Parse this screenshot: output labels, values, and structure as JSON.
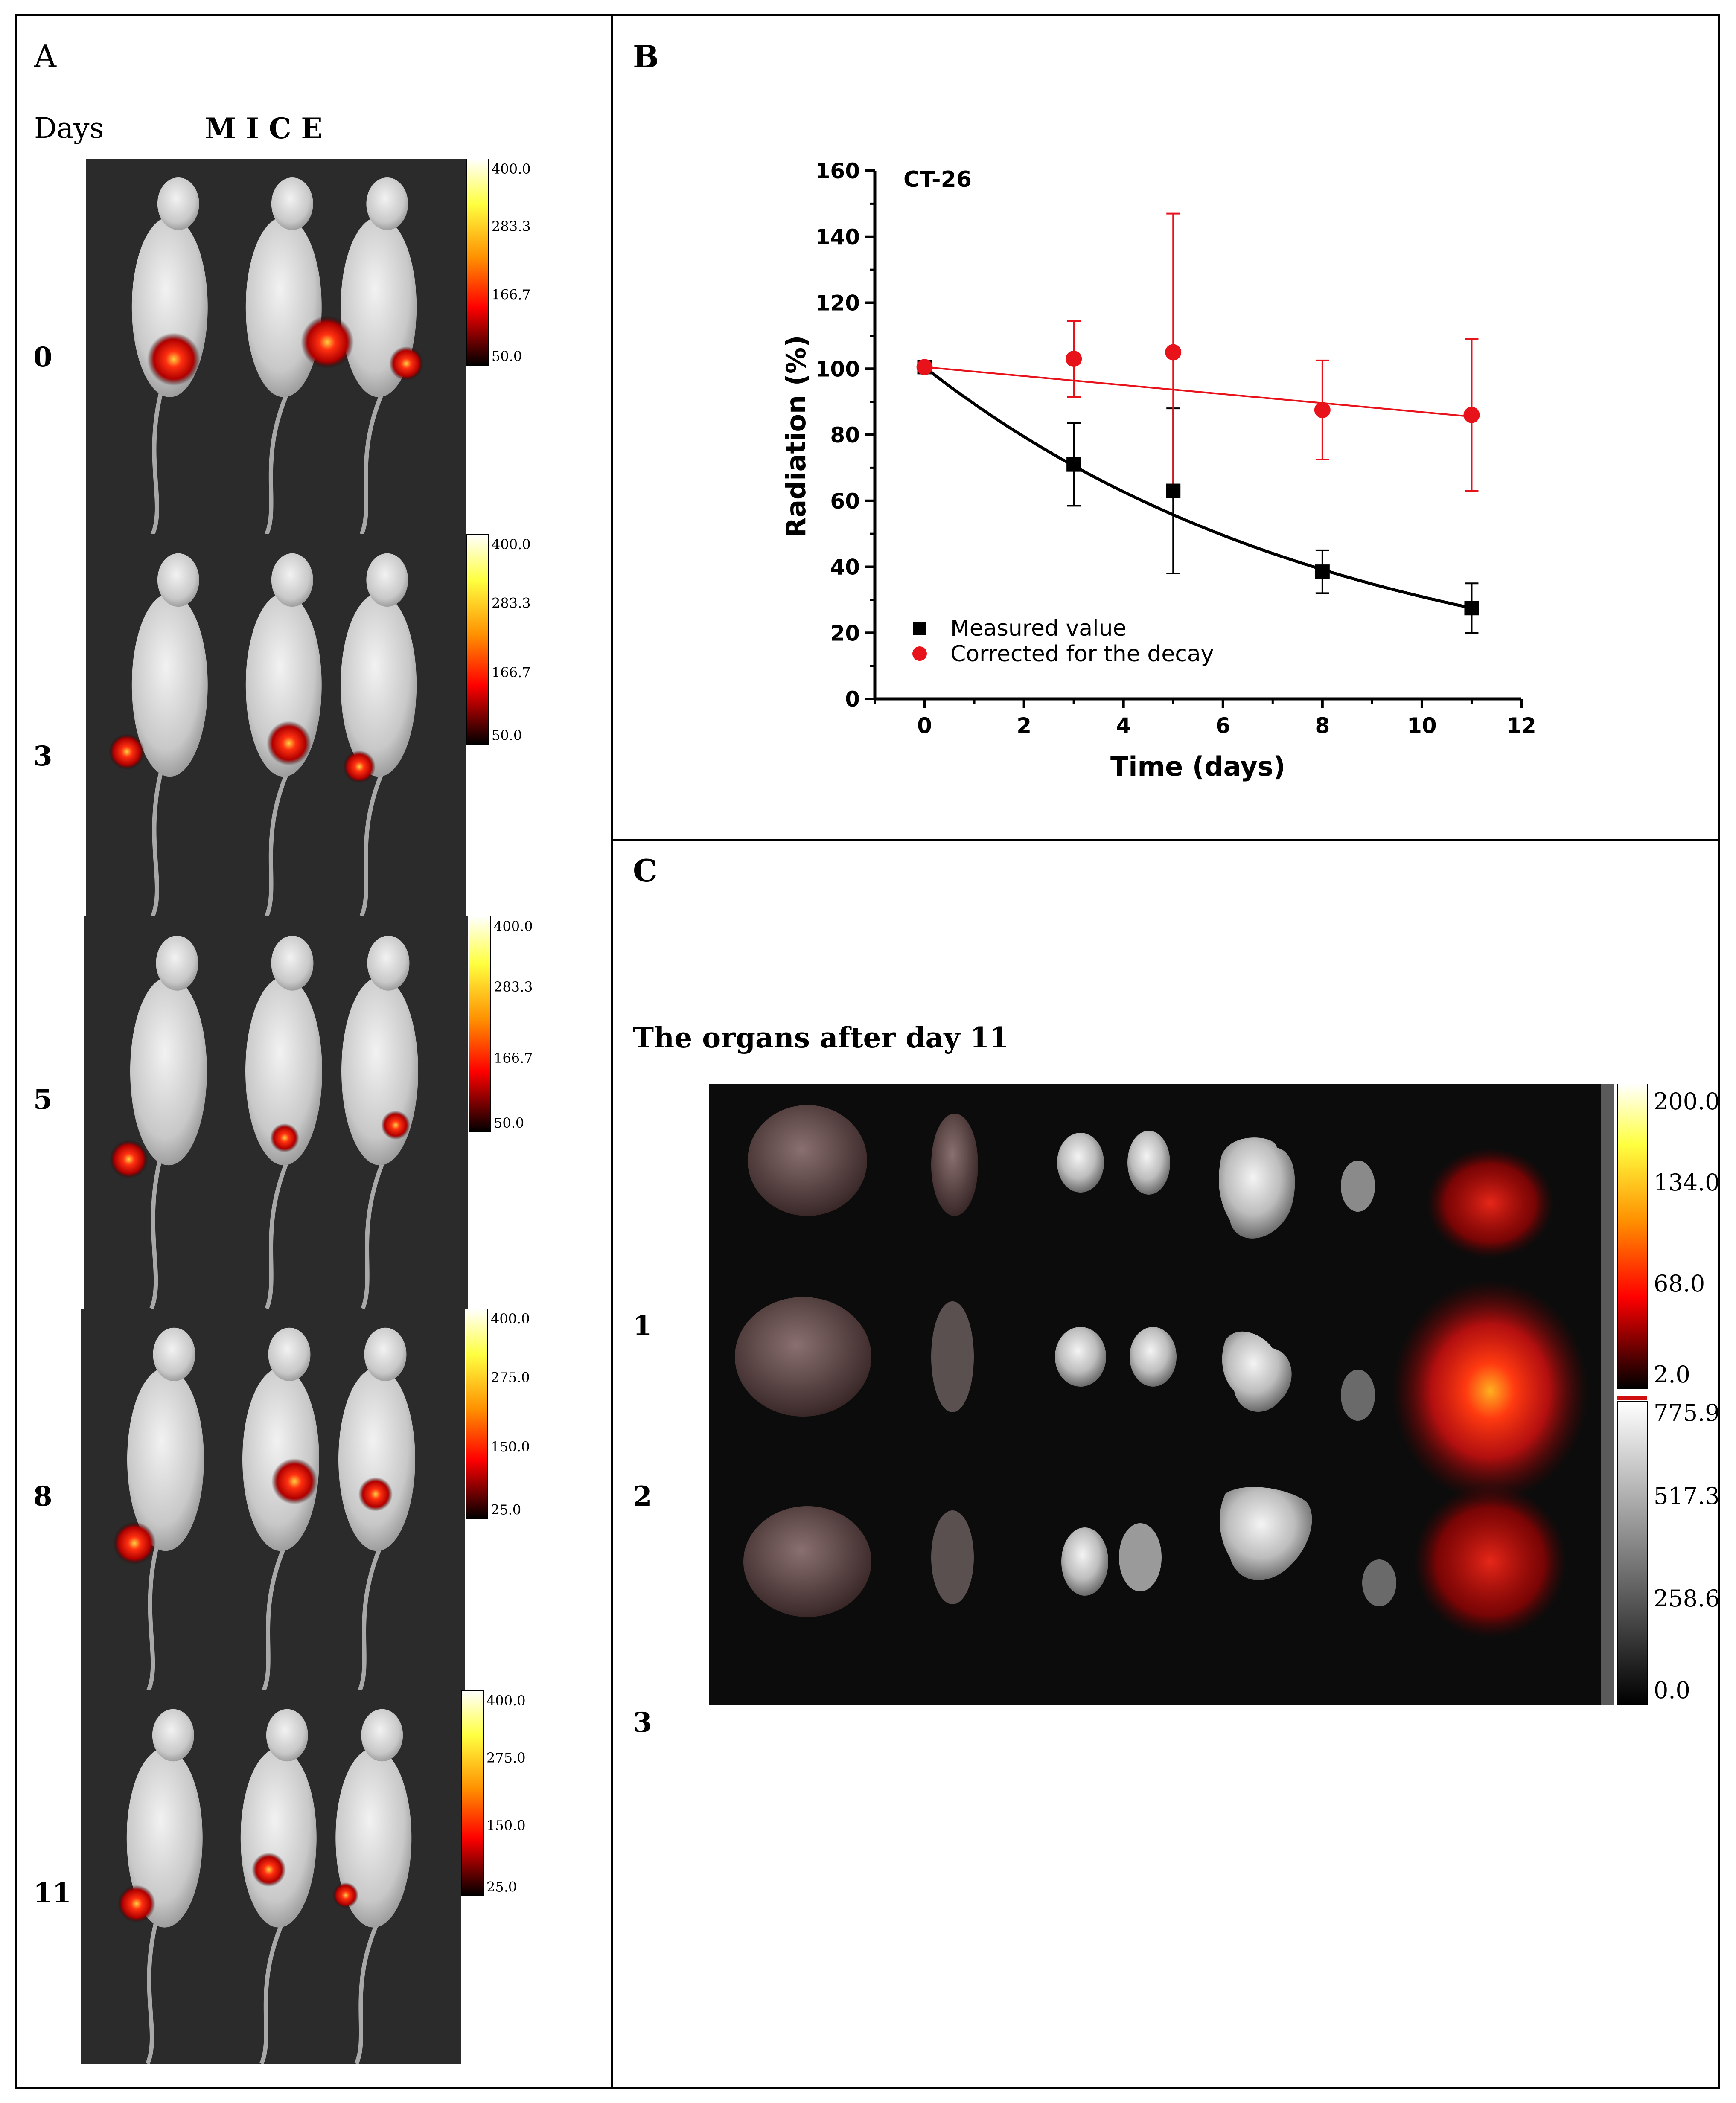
{
  "panels": {
    "a": {
      "letter": "A",
      "days_header": "Days",
      "mice_header": "M I C E",
      "rows": [
        {
          "day": "0",
          "scale": [
            "400.0",
            "283.3",
            "166.7",
            "50.0"
          ]
        },
        {
          "day": "3",
          "scale": [
            "400.0",
            "283.3",
            "166.7",
            "50.0"
          ]
        },
        {
          "day": "5",
          "scale": [
            "400.0",
            "283.3",
            "166.7",
            "50.0"
          ]
        },
        {
          "day": "8",
          "scale": [
            "400.0",
            "275.0",
            "150.0",
            "25.0"
          ]
        },
        {
          "day": "11",
          "scale": [
            "400.0",
            "275.0",
            "150.0",
            "25.0"
          ]
        }
      ]
    },
    "b": {
      "letter": "B"
    },
    "c": {
      "letter": "C",
      "title": "The organs after day 11",
      "rows": [
        "1",
        "2",
        "3"
      ],
      "color_scale": [
        "200.0",
        "134.0",
        "68.0",
        "2.0"
      ],
      "gray_scale": [
        "775.9",
        "517.3",
        "258.6",
        "0.0"
      ]
    }
  },
  "chart_data": {
    "type": "scatter",
    "annotation": "CT-26",
    "xlabel": "Time (days)",
    "ylabel": "Radiation (%)",
    "xlim": [
      -1,
      12
    ],
    "ylim": [
      0,
      160
    ],
    "xticks": [
      0,
      2,
      4,
      6,
      8,
      10,
      12
    ],
    "yticks": [
      0,
      20,
      40,
      60,
      80,
      100,
      120,
      140,
      160
    ],
    "legend_position": "bottom-left",
    "series": [
      {
        "name": "Measured value",
        "color": "#000000",
        "marker": "square",
        "x": [
          0,
          3,
          5,
          8,
          11
        ],
        "y": [
          100.5,
          71,
          63,
          38.5,
          27.5
        ],
        "err": [
          0,
          12.5,
          25,
          6.5,
          7.5
        ],
        "fit": "exponential",
        "fit_x": [
          0,
          11
        ],
        "fit_y": [
          100.5,
          27.5
        ]
      },
      {
        "name": "Corrected for the decay",
        "color": "#e8131a",
        "marker": "circle",
        "x": [
          0,
          3,
          5,
          8,
          11
        ],
        "y": [
          100.5,
          103,
          105,
          87.5,
          86
        ],
        "err": [
          0,
          11.5,
          42,
          15,
          23
        ],
        "fit": "linear",
        "fit_x": [
          0,
          11
        ],
        "fit_y": [
          100.5,
          85.5
        ]
      }
    ]
  },
  "colors": {
    "hot_low": "#1a0000",
    "hot_mid": "#e00000",
    "hot_high": "#ffff80",
    "image_bg": "#2b2b2b"
  }
}
